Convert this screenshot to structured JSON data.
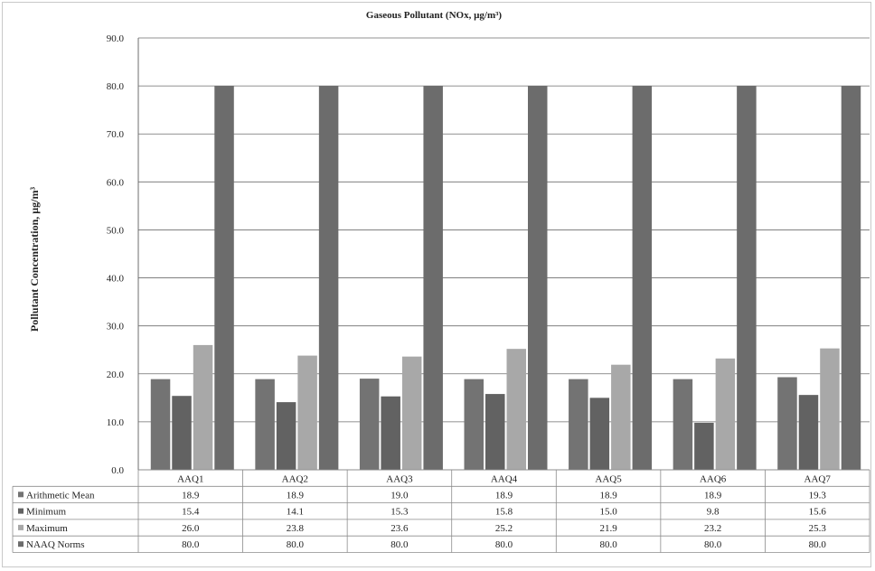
{
  "chart_data": {
    "type": "bar",
    "title": "Gaseous Pollutant (NOx, µg/m³)",
    "ylabel": "Pollutant Concentration, µg/m³",
    "xlabel": "",
    "ylim": [
      0,
      90
    ],
    "yticks": [
      "0.0",
      "10.0",
      "20.0",
      "30.0",
      "40.0",
      "50.0",
      "60.0",
      "70.0",
      "80.0",
      "90.0"
    ],
    "grid": true,
    "legend_placement": "data-table-left",
    "categories": [
      "AAQ1",
      "AAQ2",
      "AAQ3",
      "AAQ4",
      "AAQ5",
      "AAQ6",
      "AAQ7"
    ],
    "series": [
      {
        "name": "Arithmetic Mean",
        "color": "#737373",
        "values": [
          18.9,
          18.9,
          19.0,
          18.9,
          18.9,
          18.9,
          19.3
        ]
      },
      {
        "name": "Minimum",
        "color": "#626262",
        "values": [
          15.4,
          14.1,
          15.3,
          15.8,
          15.0,
          9.8,
          15.6
        ]
      },
      {
        "name": "Maximum",
        "color": "#a8a8a8",
        "values": [
          26.0,
          23.8,
          23.6,
          25.2,
          21.9,
          23.2,
          25.3
        ]
      },
      {
        "name": "NAAQ Norms",
        "color": "#6c6c6c",
        "values": [
          80.0,
          80.0,
          80.0,
          80.0,
          80.0,
          80.0,
          80.0
        ]
      }
    ]
  }
}
